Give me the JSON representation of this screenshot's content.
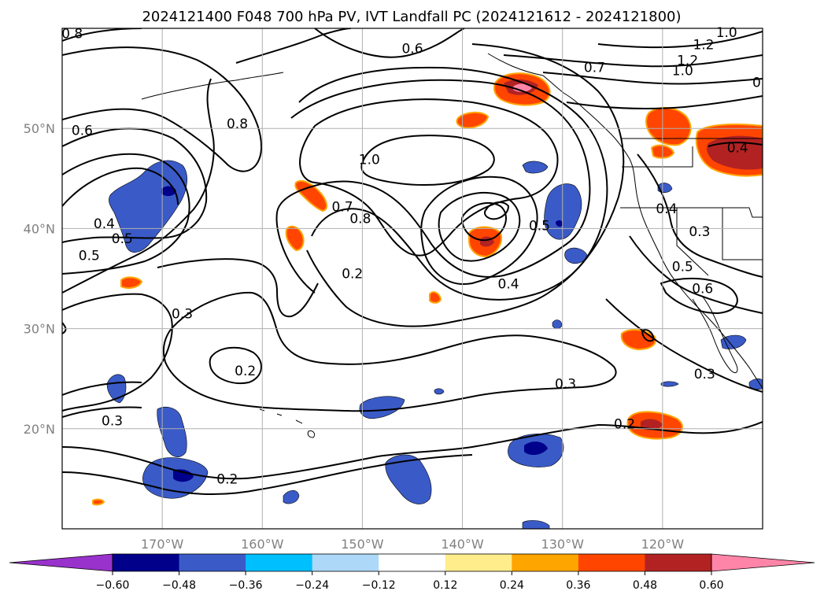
{
  "title": "2024121400 F048 700 hPa PV, IVT Landfall PC (2024121612 - 2024121800)",
  "lon_labels": [
    "170°W",
    "160°W",
    "150°W",
    "140°W",
    "130°W",
    "120°W"
  ],
  "lat_labels": [
    "50°N",
    "40°N",
    "30°N",
    "20°N"
  ],
  "map": {
    "lon_range": [
      -180,
      -110
    ],
    "lat_range": [
      10,
      60
    ],
    "gridlines": true,
    "coastlines": true,
    "grid_lons": [
      -170,
      -160,
      -150,
      -140,
      -130,
      -120
    ],
    "grid_lats": [
      20,
      30,
      40,
      50
    ]
  },
  "contour_labels": [
    {
      "text": "0.8",
      "lon": -179,
      "lat": 59.5
    },
    {
      "text": "0.6",
      "lon": -145,
      "lat": 58.0
    },
    {
      "text": "0.6",
      "lon": -178.0,
      "lat": 49.8
    },
    {
      "text": "0.8",
      "lon": -162.5,
      "lat": 50.5
    },
    {
      "text": "1.0",
      "lon": -149.3,
      "lat": 46.9
    },
    {
      "text": "0.7",
      "lon": -152.0,
      "lat": 42.2
    },
    {
      "text": "0.8",
      "lon": -150.2,
      "lat": 41.0
    },
    {
      "text": "0.5",
      "lon": -132.3,
      "lat": 40.3
    },
    {
      "text": "0.4",
      "lon": -175.8,
      "lat": 40.5
    },
    {
      "text": "0.5",
      "lon": -174.0,
      "lat": 39.0
    },
    {
      "text": "0.5",
      "lon": -177.3,
      "lat": 37.3
    },
    {
      "text": "0.2",
      "lon": -151.0,
      "lat": 35.5
    },
    {
      "text": "0.4",
      "lon": -135.4,
      "lat": 34.5
    },
    {
      "text": "0.3",
      "lon": -168.0,
      "lat": 31.5
    },
    {
      "text": "0.2",
      "lon": -161.7,
      "lat": 25.8
    },
    {
      "text": "0.3",
      "lon": -129.7,
      "lat": 24.5
    },
    {
      "text": "0.3",
      "lon": -175.0,
      "lat": 20.8
    },
    {
      "text": "0.2",
      "lon": -163.5,
      "lat": 15.0
    },
    {
      "text": "0.2",
      "lon": -123.8,
      "lat": 20.5
    },
    {
      "text": "0.7",
      "lon": -126.8,
      "lat": 56.1
    },
    {
      "text": "1.0",
      "lon": -113.6,
      "lat": 59.6
    },
    {
      "text": "1.2",
      "lon": -115.9,
      "lat": 58.4
    },
    {
      "text": "1.2",
      "lon": -117.5,
      "lat": 56.8
    },
    {
      "text": "1.0",
      "lon": -118.0,
      "lat": 55.8
    },
    {
      "text": "0",
      "lon": -110.6,
      "lat": 54.6
    },
    {
      "text": "0.4",
      "lon": -112.5,
      "lat": 48.1
    },
    {
      "text": "0.4",
      "lon": -119.6,
      "lat": 42.0
    },
    {
      "text": "0.3",
      "lon": -116.3,
      "lat": 39.7
    },
    {
      "text": "0.5",
      "lon": -118.0,
      "lat": 36.2
    },
    {
      "text": "0.6",
      "lon": -116.0,
      "lat": 34.0
    },
    {
      "text": "0.3",
      "lon": -115.8,
      "lat": 25.5
    }
  ],
  "colorbar": {
    "levels": [
      -0.6,
      -0.48,
      -0.36,
      -0.24,
      -0.12,
      0.12,
      0.24,
      0.36,
      0.48,
      0.6
    ],
    "tick_labels": [
      "−0.60",
      "−0.48",
      "−0.36",
      "−0.24",
      "−0.12",
      "0.12",
      "0.24",
      "0.36",
      "0.48",
      "0.60"
    ],
    "colors": [
      "#9932cc",
      "#00008b",
      "#3a5bc7",
      "#00bfff",
      "#add8f7",
      "#ffffff",
      "#ffec8b",
      "#ffa500",
      "#ff4500",
      "#b22222",
      "#ff85a8"
    ],
    "extend": "both"
  }
}
